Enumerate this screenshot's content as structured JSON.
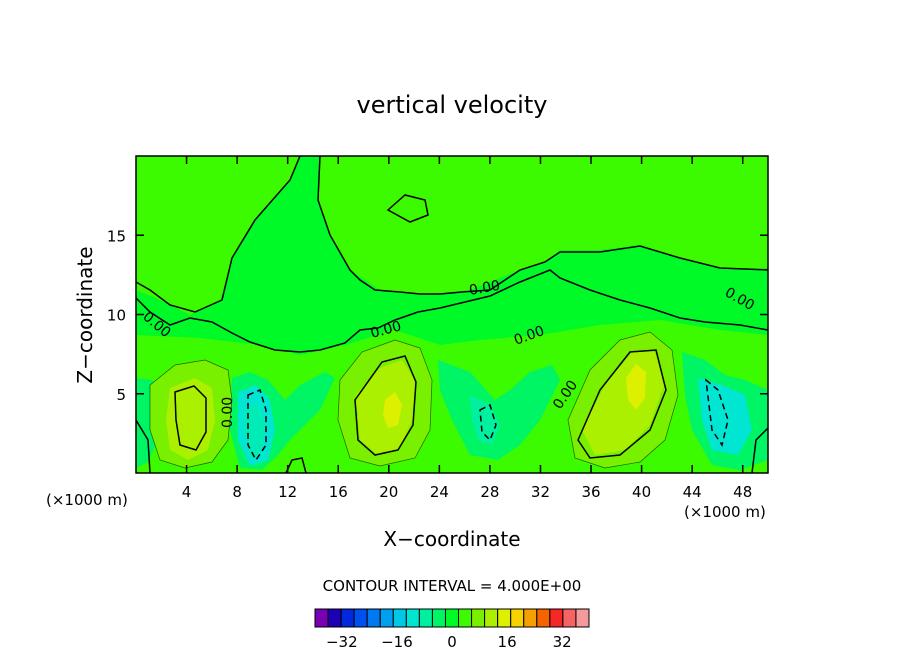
{
  "chart_data": {
    "type": "heatmap",
    "title": "vertical velocity",
    "xlabel": "X−coordinate",
    "ylabel": "Z−coordinate",
    "x_unit_left": "(×1000 m)",
    "x_unit_right": "(×1000 m)",
    "xlim": [
      0,
      50
    ],
    "ylim": [
      0,
      20
    ],
    "x_ticks": [
      4,
      8,
      12,
      16,
      20,
      24,
      28,
      32,
      36,
      40,
      44,
      48
    ],
    "y_ticks": [
      5,
      10,
      15
    ],
    "contour_interval_text": "CONTOUR INTERVAL = 4.000E+00",
    "contour_labels": [
      "0.00",
      "0.00",
      "0.00",
      "0.00",
      "0.00",
      "0.00",
      "0.00"
    ],
    "colorbar": {
      "levels": [
        -36,
        -32,
        -28,
        -24,
        -20,
        -16,
        -12,
        -8,
        -4,
        0,
        4,
        8,
        12,
        16,
        20,
        24,
        28,
        32,
        36
      ],
      "tick_values": [
        -32,
        -16,
        0,
        16,
        32
      ],
      "tick_labels": [
        "−32",
        "−16",
        "0",
        "16",
        "32"
      ],
      "colors": [
        "#7a00b4",
        "#1e00b4",
        "#0028dc",
        "#0050f0",
        "#0078f0",
        "#00a0f0",
        "#00c8e6",
        "#00e6d2",
        "#00f0a0",
        "#00f564",
        "#00fa28",
        "#3cfa00",
        "#78f000",
        "#aaf000",
        "#dcf000",
        "#f5d200",
        "#f5a000",
        "#f56400",
        "#f52828",
        "#f56464",
        "#f59a9a"
      ]
    },
    "features": [
      {
        "kind": "updraft",
        "x": 4.5,
        "z": 3.5,
        "value": 12
      },
      {
        "kind": "downdraft",
        "x": 9.5,
        "z": 3.0,
        "value": -12
      },
      {
        "kind": "updraft",
        "x": 20.5,
        "z": 4.0,
        "value": 16
      },
      {
        "kind": "downdraft",
        "x": 28.5,
        "z": 3.0,
        "value": -8
      },
      {
        "kind": "updraft",
        "x": 39.5,
        "z": 5.5,
        "value": 20
      },
      {
        "kind": "downdraft",
        "x": 46.5,
        "z": 3.5,
        "value": -12
      }
    ],
    "grid": false
  }
}
